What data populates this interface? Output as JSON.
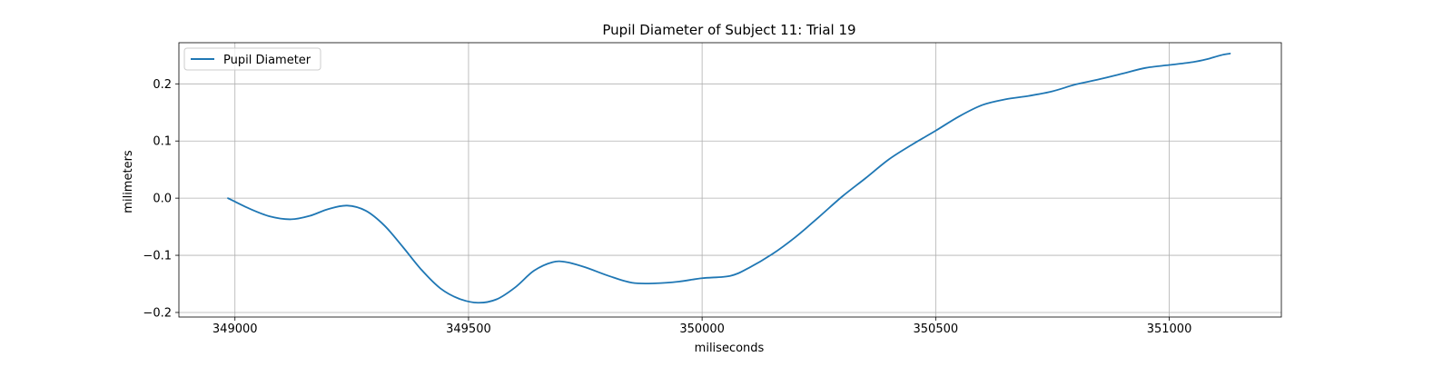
{
  "chart_data": {
    "type": "line",
    "title": "Pupil Diameter of Subject 11: Trial 19",
    "xlabel": "miliseconds",
    "ylabel": "milimeters",
    "xlim": [
      348880,
      351240
    ],
    "ylim": [
      -0.208,
      0.272
    ],
    "xticks": [
      349000,
      349500,
      350000,
      350500,
      351000
    ],
    "xtick_labels": [
      "349000",
      "349500",
      "350000",
      "350500",
      "351000"
    ],
    "yticks": [
      -0.2,
      -0.1,
      0.0,
      0.1,
      0.2
    ],
    "ytick_labels": [
      "−0.2",
      "−0.1",
      "0.0",
      "0.1",
      "0.2"
    ],
    "grid": true,
    "legend_position": "top-left",
    "series": [
      {
        "name": "Pupil Diameter",
        "color": "#1f77b4",
        "x": [
          348985,
          349030,
          349075,
          349120,
          349160,
          349200,
          349240,
          349280,
          349320,
          349360,
          349400,
          349440,
          349480,
          349520,
          349560,
          349600,
          349640,
          349680,
          349710,
          349750,
          349800,
          349850,
          349900,
          349950,
          350000,
          350060,
          350100,
          350150,
          350200,
          350250,
          350300,
          350350,
          350400,
          350450,
          350500,
          350550,
          350600,
          350650,
          350700,
          350750,
          350800,
          350850,
          350900,
          350950,
          351000,
          351050,
          351080,
          351110,
          351130
        ],
        "y": [
          0.0,
          -0.018,
          -0.032,
          -0.037,
          -0.031,
          -0.019,
          -0.013,
          -0.022,
          -0.048,
          -0.086,
          -0.126,
          -0.158,
          -0.176,
          -0.183,
          -0.177,
          -0.156,
          -0.127,
          -0.112,
          -0.112,
          -0.121,
          -0.136,
          -0.148,
          -0.149,
          -0.146,
          -0.14,
          -0.136,
          -0.122,
          -0.098,
          -0.068,
          -0.033,
          0.003,
          0.035,
          0.068,
          0.094,
          0.118,
          0.143,
          0.163,
          0.173,
          0.179,
          0.187,
          0.199,
          0.208,
          0.218,
          0.228,
          0.233,
          0.238,
          0.243,
          0.25,
          0.253
        ]
      }
    ]
  }
}
